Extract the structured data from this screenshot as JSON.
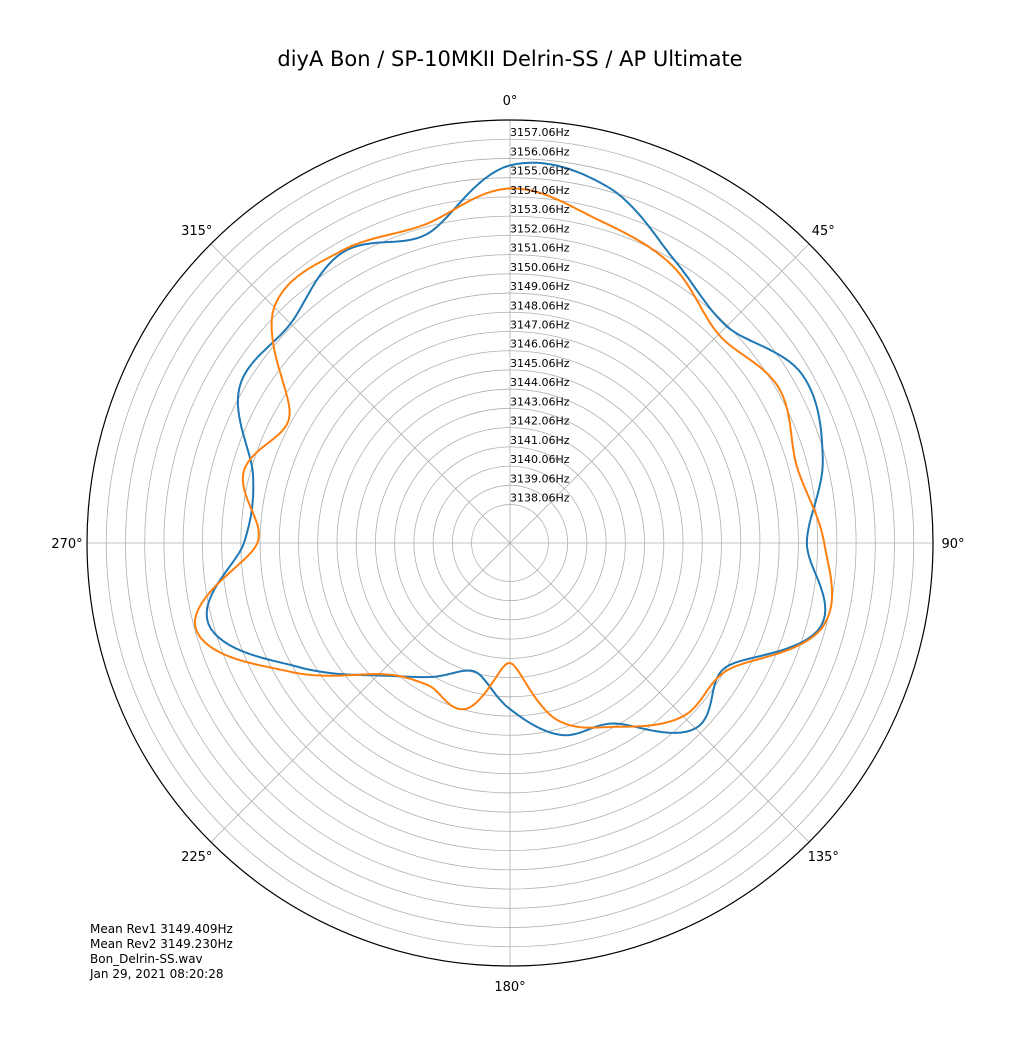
{
  "chart_data": {
    "type": "polar-line",
    "title": "diyA Bon / SP-10MKII Delrin-SS  / AP Ultimate",
    "theta_direction": "clockwise",
    "theta_zero": "top",
    "angle_ticks": [
      {
        "deg": 0,
        "label": "0°"
      },
      {
        "deg": 45,
        "label": "45°"
      },
      {
        "deg": 90,
        "label": "90°"
      },
      {
        "deg": 135,
        "label": "135°"
      },
      {
        "deg": 180,
        "label": "180°"
      },
      {
        "deg": 225,
        "label": "225°"
      },
      {
        "deg": 270,
        "label": "270°"
      },
      {
        "deg": 315,
        "label": "315°"
      }
    ],
    "r_range": [
      3136.06,
      3158.06
    ],
    "r_ticks": [
      {
        "value": 3138.06,
        "label": "3138.06Hz"
      },
      {
        "value": 3139.06,
        "label": "3139.06Hz"
      },
      {
        "value": 3140.06,
        "label": "3140.06Hz"
      },
      {
        "value": 3141.06,
        "label": "3141.06Hz"
      },
      {
        "value": 3142.06,
        "label": "3142.06Hz"
      },
      {
        "value": 3143.06,
        "label": "3143.06Hz"
      },
      {
        "value": 3144.06,
        "label": "3144.06Hz"
      },
      {
        "value": 3145.06,
        "label": "3145.06Hz"
      },
      {
        "value": 3146.06,
        "label": "3146.06Hz"
      },
      {
        "value": 3147.06,
        "label": "3147.06Hz"
      },
      {
        "value": 3148.06,
        "label": "3148.06Hz"
      },
      {
        "value": 3149.06,
        "label": "3149.06Hz"
      },
      {
        "value": 3150.06,
        "label": "3150.06Hz"
      },
      {
        "value": 3151.06,
        "label": "3151.06Hz"
      },
      {
        "value": 3152.06,
        "label": "3152.06Hz"
      },
      {
        "value": 3153.06,
        "label": "3153.06Hz"
      },
      {
        "value": 3154.06,
        "label": "3154.06Hz"
      },
      {
        "value": 3155.06,
        "label": "3155.06Hz"
      },
      {
        "value": 3156.06,
        "label": "3156.06Hz"
      },
      {
        "value": 3157.06,
        "label": "3157.06Hz"
      }
    ],
    "grid": true,
    "series": [
      {
        "color": "#1f77b4",
        "theta_deg": [
          0,
          15,
          30,
          45,
          60,
          75,
          90,
          105,
          120,
          135,
          150,
          165,
          180,
          195,
          210,
          225,
          240,
          255,
          270,
          285,
          300,
          315,
          330,
          345
        ],
        "r_hz": [
          3155.7,
          3155.3,
          3153.1,
          3152.0,
          3153.6,
          3152.9,
          3151.5,
          3152.8,
          3149.0,
          3149.7,
          3146.9,
          3146.4,
          3144.7,
          3143.0,
          3144.1,
          3145.8,
          3148.9,
          3152.3,
          3149.9,
          3149.9,
          3152.3,
          3152.2,
          3153.5,
          3152.7
        ]
      },
      {
        "color": "#ff7f0e",
        "theta_deg": [
          0,
          15,
          30,
          45,
          60,
          75,
          90,
          105,
          120,
          135,
          150,
          165,
          180,
          195,
          210,
          225,
          240,
          255,
          270,
          285,
          300,
          315,
          330,
          345
        ],
        "r_hz": [
          3154.5,
          3153.5,
          3152.8,
          3151.4,
          3152.2,
          3151.5,
          3152.4,
          3152.9,
          3149.2,
          3148.8,
          3147.1,
          3145.6,
          3142.3,
          3145.0,
          3144.6,
          3145.7,
          3149.4,
          3153.0,
          3149.2,
          3150.4,
          3149.3,
          3153.4,
          3153.6,
          3153.2
        ]
      }
    ]
  },
  "info": {
    "mean_rev1": "Mean Rev1 3149.409Hz",
    "mean_rev2": "Mean Rev2 3149.230Hz",
    "filename": "Bon_Delrin-SS.wav",
    "timestamp": "Jan 29, 2021 08:20:28"
  },
  "colors": {
    "blue": "#1f77b4",
    "orange": "#ff7f0e",
    "grid": "#b0b0b0"
  }
}
